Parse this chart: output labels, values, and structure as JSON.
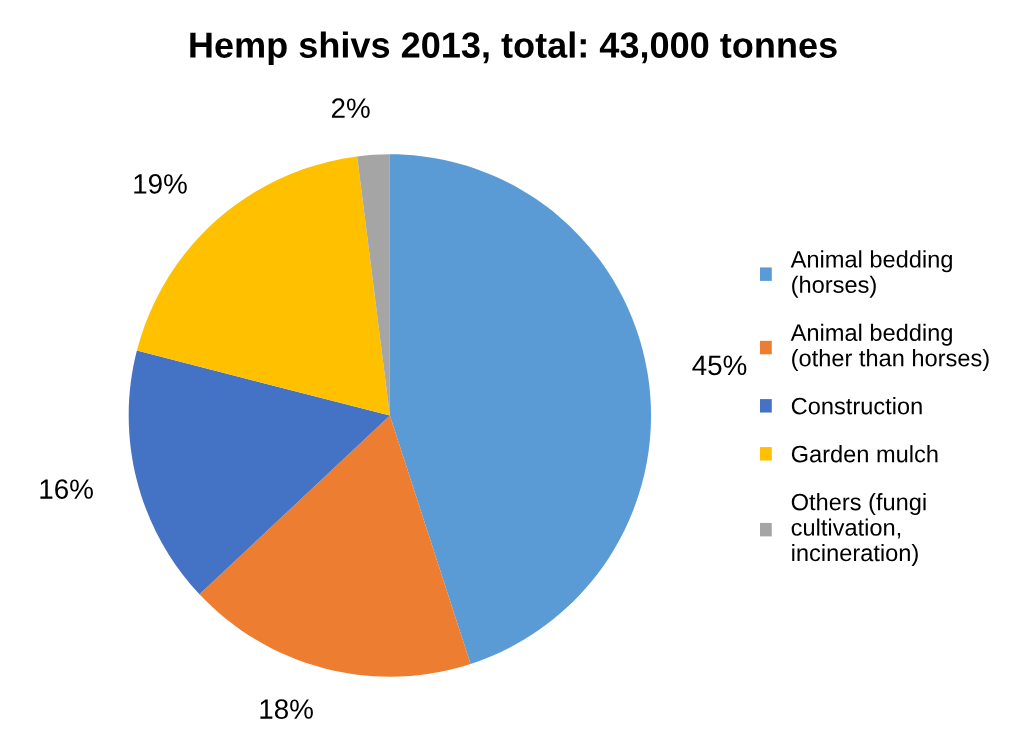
{
  "chart_data": {
    "type": "pie",
    "title": "Hemp shivs 2013, total: 43,000 tonnes",
    "categories": [
      "Animal bedding\n(horses)",
      "Animal bedding\n(other than horses)",
      "Construction",
      "Garden mulch",
      "Others (fungi\ncultivation,\nincineration)"
    ],
    "values": [
      45,
      18,
      16,
      19,
      2
    ],
    "colors": [
      "#5b9bd5",
      "#ed7d31",
      "#4472c4",
      "#ffc000",
      "#a5a5a5"
    ],
    "value_labels": [
      "45%",
      "18%",
      "16%",
      "19%",
      "2%"
    ],
    "legend": "right"
  }
}
